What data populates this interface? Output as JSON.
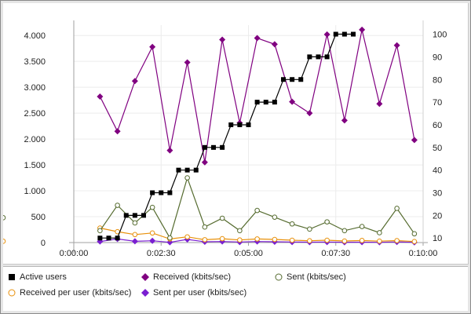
{
  "chart_data": {
    "type": "line",
    "x": [
      "0:00:45",
      "0:01:00",
      "0:01:15",
      "0:01:30",
      "0:01:45",
      "0:02:00",
      "0:02:15",
      "0:02:30",
      "0:02:45",
      "0:03:00",
      "0:03:15",
      "0:03:30",
      "0:03:45",
      "0:04:00",
      "0:04:15",
      "0:04:30",
      "0:04:45",
      "0:05:00",
      "0:05:15",
      "0:05:30",
      "0:05:45",
      "0:06:00",
      "0:06:15",
      "0:06:30",
      "0:06:45",
      "0:07:00",
      "0:07:15",
      "0:07:30",
      "0:07:45",
      "0:08:00",
      "0:08:15",
      "0:08:30",
      "0:08:45",
      "0:09:00",
      "0:09:15",
      "0:09:30",
      "0:09:45"
    ],
    "xlim": [
      "0:00:00",
      "0:10:00"
    ],
    "x_ticks": [
      "0:00:00",
      "0:02:30",
      "0:05:00",
      "0:07:30",
      "0:10:00"
    ],
    "y_left": {
      "lim": [
        0,
        4200
      ],
      "ticks": [
        "0",
        "500",
        "1.000",
        "1.500",
        "2.000",
        "2.500",
        "3.000",
        "3.500",
        "4.000"
      ],
      "tick_values": [
        0,
        500,
        1000,
        1500,
        2000,
        2500,
        3000,
        3500,
        4000
      ]
    },
    "y_right": {
      "lim": [
        8,
        104
      ],
      "ticks": [
        "10",
        "20",
        "30",
        "40",
        "50",
        "60",
        "70",
        "80",
        "90",
        "100"
      ],
      "tick_values": [
        10,
        20,
        30,
        40,
        50,
        60,
        70,
        80,
        90,
        100
      ]
    },
    "grid": true,
    "legend_position": "bottom",
    "series": [
      {
        "name": "Active users",
        "axis": "right",
        "color": "#000000",
        "marker": "square-filled",
        "points": [
          [
            0,
            10
          ],
          [
            1,
            10
          ],
          [
            2,
            10
          ],
          [
            3,
            20
          ],
          [
            4,
            20
          ],
          [
            5,
            20
          ],
          [
            6,
            30
          ],
          [
            7,
            30
          ],
          [
            8,
            30
          ],
          [
            9,
            40
          ],
          [
            10,
            40
          ],
          [
            11,
            40
          ],
          [
            12,
            50
          ],
          [
            13,
            50
          ],
          [
            14,
            50
          ],
          [
            15,
            60
          ],
          [
            16,
            60
          ],
          [
            17,
            60
          ],
          [
            18,
            70
          ],
          [
            19,
            70
          ],
          [
            20,
            70
          ],
          [
            21,
            80
          ],
          [
            22,
            80
          ],
          [
            23,
            80
          ],
          [
            24,
            90
          ],
          [
            25,
            90
          ],
          [
            26,
            90
          ],
          [
            27,
            100
          ],
          [
            28,
            100
          ],
          [
            29,
            100
          ]
        ]
      },
      {
        "name": "Received (kbits/sec)",
        "axis": "left",
        "color": "#800080",
        "marker": "diamond-filled",
        "points": [
          [
            0,
            2820
          ],
          [
            2,
            2150
          ],
          [
            4,
            3120
          ],
          [
            6,
            3780
          ],
          [
            8,
            1780
          ],
          [
            10,
            3480
          ],
          [
            12,
            1550
          ],
          [
            14,
            3920
          ],
          [
            16,
            2310
          ],
          [
            18,
            3950
          ],
          [
            20,
            3830
          ],
          [
            22,
            2720
          ],
          [
            24,
            2500
          ],
          [
            26,
            4020
          ],
          [
            28,
            2360
          ],
          [
            30,
            4110
          ],
          [
            32,
            2680
          ],
          [
            34,
            3810
          ],
          [
            36,
            1980
          ],
          [
            38,
            2500
          ]
        ]
      },
      {
        "name": "Sent (kbits/sec)",
        "axis": "left",
        "color": "#556b2f",
        "marker": "circle-open",
        "points": [
          [
            0,
            230
          ],
          [
            2,
            720
          ],
          [
            4,
            380
          ],
          [
            6,
            680
          ],
          [
            8,
            90
          ],
          [
            10,
            1250
          ],
          [
            12,
            300
          ],
          [
            14,
            470
          ],
          [
            16,
            230
          ],
          [
            18,
            620
          ],
          [
            20,
            490
          ],
          [
            22,
            360
          ],
          [
            24,
            260
          ],
          [
            26,
            400
          ],
          [
            28,
            230
          ],
          [
            30,
            310
          ],
          [
            32,
            190
          ],
          [
            34,
            660
          ],
          [
            36,
            170
          ],
          [
            38,
            480
          ]
        ]
      },
      {
        "name": "Received per user (kbits/sec)",
        "axis": "left",
        "color": "#e8900a",
        "marker": "circle-open",
        "points": [
          [
            0,
            280
          ],
          [
            2,
            210
          ],
          [
            4,
            155
          ],
          [
            6,
            185
          ],
          [
            8,
            70
          ],
          [
            10,
            110
          ],
          [
            12,
            55
          ],
          [
            14,
            75
          ],
          [
            16,
            50
          ],
          [
            18,
            70
          ],
          [
            20,
            60
          ],
          [
            22,
            45
          ],
          [
            24,
            35
          ],
          [
            26,
            45
          ],
          [
            28,
            30
          ],
          [
            30,
            40
          ],
          [
            32,
            28
          ],
          [
            34,
            38
          ],
          [
            36,
            20
          ],
          [
            38,
            25
          ]
        ]
      },
      {
        "name": "Sent per user (kbits/sec)",
        "axis": "left",
        "color": "#7a1fd1",
        "marker": "diamond-filled",
        "points": [
          [
            0,
            20
          ],
          [
            2,
            70
          ],
          [
            4,
            25
          ],
          [
            6,
            35
          ],
          [
            8,
            5
          ],
          [
            10,
            60
          ],
          [
            12,
            15
          ],
          [
            14,
            20
          ],
          [
            16,
            10
          ],
          [
            18,
            20
          ],
          [
            20,
            15
          ],
          [
            22,
            10
          ],
          [
            24,
            8
          ],
          [
            26,
            10
          ],
          [
            28,
            6
          ],
          [
            30,
            8
          ],
          [
            32,
            5
          ],
          [
            34,
            12
          ],
          [
            36,
            4
          ],
          [
            38,
            10
          ]
        ]
      }
    ]
  },
  "legend": {
    "items": [
      {
        "label": "Active users"
      },
      {
        "label": "Received (kbits/sec)"
      },
      {
        "label": "Sent (kbits/sec)"
      },
      {
        "label": "Received per user (kbits/sec)"
      },
      {
        "label": "Sent per user (kbits/sec)"
      }
    ]
  }
}
